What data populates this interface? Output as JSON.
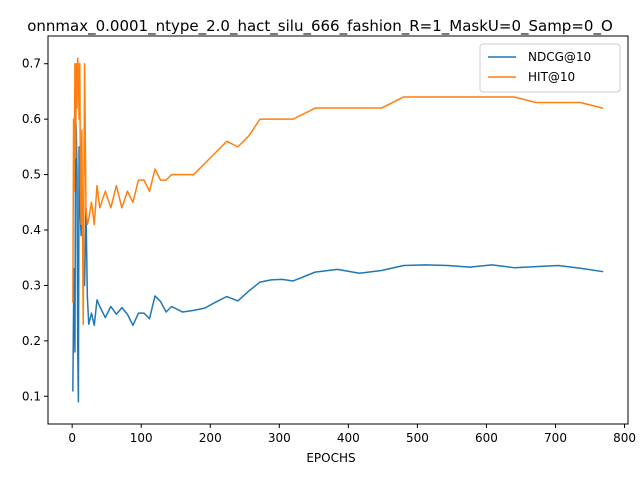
{
  "chart_data": {
    "type": "line",
    "title": "onnmax_0.0001_ntype_2.0_hact_silu_666_fashion_R=1_MaskU=0_Samp=0_O",
    "xlabel": "EPOCHS",
    "ylabel": "",
    "xlim": [
      -35,
      805
    ],
    "ylim": [
      0.05,
      0.75
    ],
    "xticks": [
      0,
      100,
      200,
      300,
      400,
      500,
      600,
      700,
      800
    ],
    "yticks": [
      0.1,
      0.2,
      0.3,
      0.4,
      0.5,
      0.6,
      0.7
    ],
    "grid": false,
    "legend_position": "upper-right",
    "series": [
      {
        "name": "NDCG@10",
        "color": "#1f77b4",
        "x": [
          1,
          2,
          3,
          4,
          5,
          6,
          7,
          8,
          9,
          10,
          11,
          12,
          13,
          14,
          16,
          18,
          20,
          22,
          24,
          28,
          32,
          36,
          40,
          48,
          56,
          64,
          72,
          80,
          88,
          96,
          104,
          112,
          120,
          128,
          136,
          144,
          160,
          176,
          192,
          208,
          224,
          240,
          256,
          272,
          288,
          304,
          320,
          352,
          384,
          416,
          448,
          480,
          512,
          544,
          576,
          608,
          640,
          672,
          704,
          736,
          768
        ],
        "y": [
          0.11,
          0.26,
          0.33,
          0.18,
          0.6,
          0.58,
          0.5,
          0.2,
          0.09,
          0.55,
          0.51,
          0.42,
          0.39,
          0.47,
          0.35,
          0.3,
          0.44,
          0.28,
          0.23,
          0.25,
          0.228,
          0.274,
          0.262,
          0.242,
          0.262,
          0.248,
          0.26,
          0.248,
          0.228,
          0.25,
          0.25,
          0.24,
          0.281,
          0.271,
          0.252,
          0.262,
          0.252,
          0.255,
          0.259,
          0.27,
          0.28,
          0.272,
          0.29,
          0.306,
          0.31,
          0.311,
          0.308,
          0.324,
          0.329,
          0.322,
          0.327,
          0.336,
          0.337,
          0.336,
          0.333,
          0.337,
          0.332,
          0.334,
          0.336,
          0.331,
          0.325
        ]
      },
      {
        "name": "HIT@10",
        "color": "#ff7f0e",
        "x": [
          1,
          2,
          3,
          4,
          5,
          6,
          7,
          8,
          9,
          10,
          11,
          12,
          13,
          14,
          16,
          18,
          20,
          22,
          24,
          28,
          32,
          36,
          40,
          48,
          56,
          64,
          72,
          80,
          88,
          96,
          104,
          112,
          120,
          128,
          136,
          144,
          160,
          176,
          192,
          208,
          224,
          240,
          256,
          272,
          288,
          304,
          320,
          352,
          384,
          416,
          448,
          480,
          512,
          544,
          576,
          608,
          640,
          672,
          704,
          736,
          768
        ],
        "y": [
          0.27,
          0.6,
          0.47,
          0.7,
          0.53,
          0.7,
          0.62,
          0.71,
          0.69,
          0.6,
          0.7,
          0.48,
          0.41,
          0.58,
          0.23,
          0.7,
          0.44,
          0.41,
          0.42,
          0.45,
          0.41,
          0.48,
          0.44,
          0.47,
          0.44,
          0.48,
          0.44,
          0.47,
          0.45,
          0.49,
          0.49,
          0.47,
          0.51,
          0.49,
          0.49,
          0.5,
          0.5,
          0.5,
          0.52,
          0.54,
          0.56,
          0.55,
          0.57,
          0.6,
          0.6,
          0.6,
          0.6,
          0.62,
          0.62,
          0.62,
          0.62,
          0.64,
          0.64,
          0.64,
          0.64,
          0.64,
          0.64,
          0.63,
          0.63,
          0.63,
          0.62
        ]
      }
    ]
  }
}
